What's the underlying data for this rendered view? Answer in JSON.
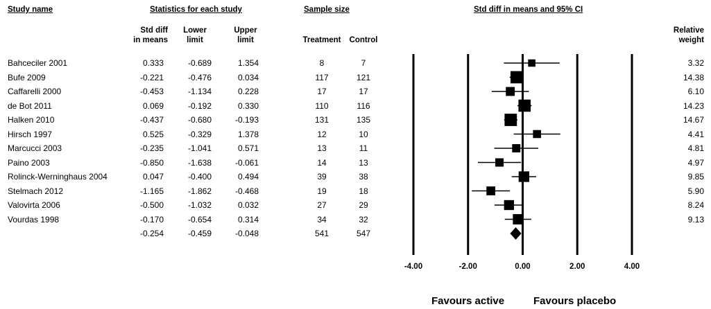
{
  "headers": {
    "study_name": "Study name",
    "stats_group": "Statistics for each study",
    "sample_group": "Sample size",
    "plot_group": "Std diff in means and 95% CI",
    "std_diff": "Std diff\nin means",
    "lower": "Lower\nlimit",
    "upper": "Upper\nlimit",
    "treatment": "Treatment",
    "control": "Control",
    "weight": "Relative\nweight"
  },
  "chart_data": {
    "type": "forest",
    "x_ticks": [
      -4,
      -2,
      0,
      2,
      4
    ],
    "x_tick_labels": [
      "-4.00",
      "-2.00",
      "0.00",
      "2.00",
      "4.00"
    ],
    "xlim": [
      -4,
      4
    ],
    "reference_lines": [
      -4,
      -2,
      0,
      2,
      4
    ],
    "studies": [
      {
        "name": "Bahceciler 2001",
        "std_diff": "0.333",
        "lower": "-0.689",
        "upper": "1.354",
        "treatment": "8",
        "control": "7",
        "weight": "3.32"
      },
      {
        "name": "Bufe 2009",
        "std_diff": "-0.221",
        "lower": "-0.476",
        "upper": "0.034",
        "treatment": "117",
        "control": "121",
        "weight": "14.38"
      },
      {
        "name": "Caffarelli 2000",
        "std_diff": "-0.453",
        "lower": "-1.134",
        "upper": "0.228",
        "treatment": "17",
        "control": "17",
        "weight": "6.10"
      },
      {
        "name": "de Bot 2011",
        "std_diff": "0.069",
        "lower": "-0.192",
        "upper": "0.330",
        "treatment": "110",
        "control": "116",
        "weight": "14.23"
      },
      {
        "name": "Halken 2010",
        "std_diff": "-0.437",
        "lower": "-0.680",
        "upper": "-0.193",
        "treatment": "131",
        "control": "135",
        "weight": "14.67"
      },
      {
        "name": "Hirsch 1997",
        "std_diff": "0.525",
        "lower": "-0.329",
        "upper": "1.378",
        "treatment": "12",
        "control": "10",
        "weight": "4.41"
      },
      {
        "name": "Marcucci 2003",
        "std_diff": "-0.235",
        "lower": "-1.041",
        "upper": "0.571",
        "treatment": "13",
        "control": "11",
        "weight": "4.81"
      },
      {
        "name": "Paino 2003",
        "std_diff": "-0.850",
        "lower": "-1.638",
        "upper": "-0.061",
        "treatment": "14",
        "control": "13",
        "weight": "4.97"
      },
      {
        "name": "Rolinck-Werninghaus 2004",
        "std_diff": "0.047",
        "lower": "-0.400",
        "upper": "0.494",
        "treatment": "39",
        "control": "38",
        "weight": "9.85"
      },
      {
        "name": "Stelmach 2012",
        "std_diff": "-1.165",
        "lower": "-1.862",
        "upper": "-0.468",
        "treatment": "19",
        "control": "18",
        "weight": "5.90"
      },
      {
        "name": "Valovirta 2006",
        "std_diff": "-0.500",
        "lower": "-1.032",
        "upper": "0.032",
        "treatment": "27",
        "control": "29",
        "weight": "8.24"
      },
      {
        "name": "Vourdas 1998",
        "std_diff": "-0.170",
        "lower": "-0.654",
        "upper": "0.314",
        "treatment": "34",
        "control": "32",
        "weight": "9.13"
      }
    ],
    "pooled": {
      "std_diff": "-0.254",
      "lower": "-0.459",
      "upper": "-0.048",
      "treatment": "541",
      "control": "547"
    },
    "favours_left": "Favours active",
    "favours_right": "Favours placebo"
  }
}
